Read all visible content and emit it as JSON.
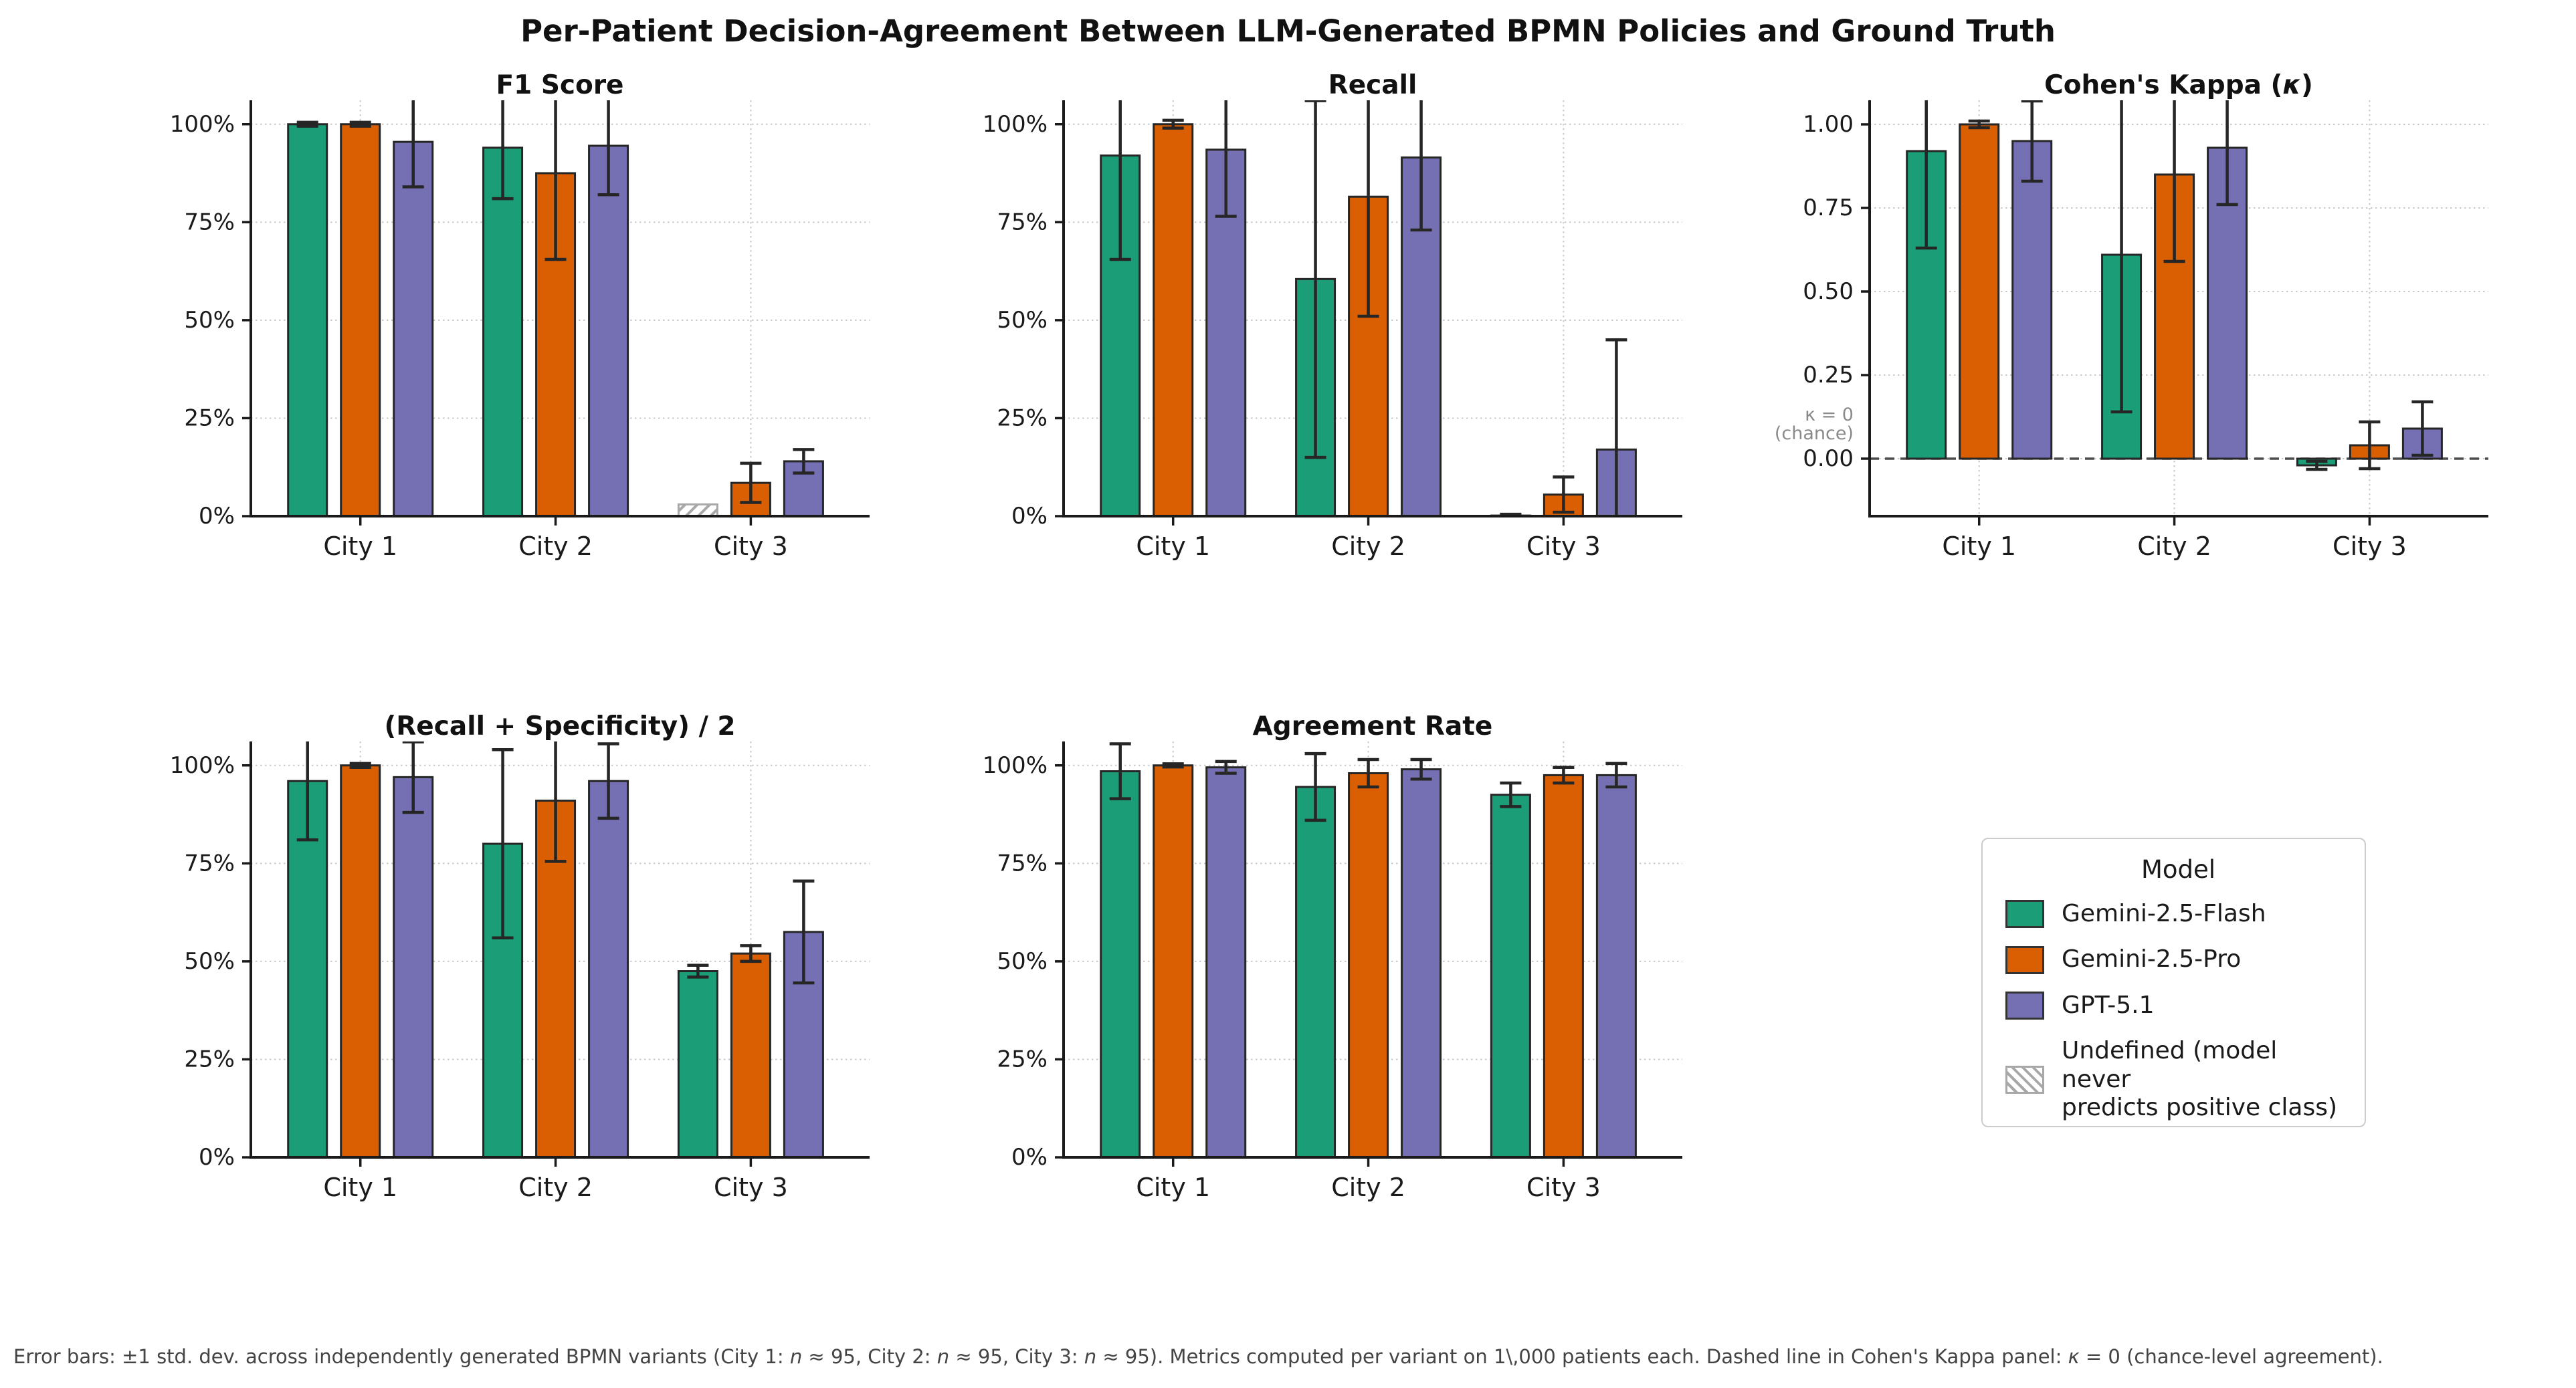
{
  "title": "Per-Patient Decision-Agreement Between LLM-Generated BPMN Policies and Ground Truth",
  "models": [
    {
      "name": "Gemini-2.5-Flash",
      "color": "#1b9e77"
    },
    {
      "name": "Gemini-2.5-Pro",
      "color": "#d95f02"
    },
    {
      "name": "GPT-5.1",
      "color": "#7570b3"
    }
  ],
  "legend": {
    "title": "Model",
    "undefined_lines": [
      "Undefined (model never",
      "predicts positive class)"
    ]
  },
  "style_colors": {
    "bar_edge": "#262626",
    "error_bar": "#262626",
    "grid": "#c9c9c9",
    "spine": "#1a1a1a",
    "zero_dash": "#4d4d4d",
    "hatch": "#a8a8a8",
    "annotation": "#8a8a8a"
  },
  "footnote": {
    "segments": [
      {
        "text": "Error bars: ±1 std. dev. across independently generated BPMN variants (City 1: ",
        "italic": false
      },
      {
        "text": "n",
        "italic": true
      },
      {
        "text": " ≈ 95, City 2: ",
        "italic": false
      },
      {
        "text": "n",
        "italic": true
      },
      {
        "text": " ≈ 95, City 3: ",
        "italic": false
      },
      {
        "text": "n",
        "italic": true
      },
      {
        "text": " ≈ 95). Metrics computed per variant on 1\\,000 patients each. Dashed line in Cohen's Kappa panel: ",
        "italic": false
      },
      {
        "text": "κ",
        "italic": true
      },
      {
        "text": " = 0 (chance-level agreement).",
        "italic": false
      }
    ]
  },
  "chart_data": {
    "type": "bar",
    "categories": [
      "City 1",
      "City 2",
      "City 3"
    ],
    "legend_position": "lower-right cell of 2x3 grid",
    "grid": "dotted horizontal at y-ticks and vertical at city centers",
    "panels": [
      {
        "id": "f1",
        "title_segments": [
          {
            "text": "F1 Score",
            "italic": false
          }
        ],
        "unit": "percent",
        "ylim": [
          0,
          106.1
        ],
        "ytick_values": [
          0,
          25,
          50,
          75,
          100
        ],
        "ytick_labels": [
          "0%",
          "25%",
          "50%",
          "75%",
          "100%"
        ],
        "series": [
          {
            "name": "Gemini-2.5-Flash",
            "values": [
              100,
              94,
              null
            ],
            "errors": [
              0.5,
              13,
              null
            ]
          },
          {
            "name": "Gemini-2.5-Pro",
            "values": [
              100,
              87.5,
              8.5
            ],
            "errors": [
              0.5,
              22,
              5
            ]
          },
          {
            "name": "GPT-5.1",
            "values": [
              95.5,
              94.5,
              14
            ],
            "errors": [
              11.5,
              12.5,
              3
            ]
          }
        ],
        "undefined_marker": {
          "series": 0,
          "category": 2,
          "display_height": 3,
          "meaning": "Undefined (model never predicts positive class)"
        }
      },
      {
        "id": "recall",
        "title_segments": [
          {
            "text": "Recall",
            "italic": false
          }
        ],
        "unit": "percent",
        "ylim": [
          0,
          106.1
        ],
        "ytick_values": [
          0,
          25,
          50,
          75,
          100
        ],
        "ytick_labels": [
          "0%",
          "25%",
          "50%",
          "75%",
          "100%"
        ],
        "series": [
          {
            "name": "Gemini-2.5-Flash",
            "values": [
              92,
              60.5,
              0.15
            ],
            "errors": [
              26.5,
              45.5,
              0.35
            ]
          },
          {
            "name": "Gemini-2.5-Pro",
            "values": [
              100,
              81.5,
              5.5
            ],
            "errors": [
              1,
              30.5,
              4.5
            ]
          },
          {
            "name": "GPT-5.1",
            "values": [
              93.5,
              91.5,
              17
            ],
            "errors": [
              17,
              18.5,
              28
            ]
          }
        ]
      },
      {
        "id": "kappa",
        "title_segments": [
          {
            "text": "Cohen's Kappa (",
            "italic": false
          },
          {
            "text": "κ",
            "italic": true
          },
          {
            "text": ")",
            "italic": false
          }
        ],
        "unit": "kappa",
        "ylim": [
          -0.172,
          1.072
        ],
        "ytick_values": [
          0,
          0.25,
          0.5,
          0.75,
          1.0
        ],
        "ytick_labels": [
          "0.00",
          "0.25",
          "0.50",
          "0.75",
          "1.00"
        ],
        "zero_line": true,
        "annotation": {
          "lines": [
            "κ = 0",
            "(chance)"
          ]
        },
        "series": [
          {
            "name": "Gemini-2.5-Flash",
            "values": [
              0.92,
              0.61,
              -0.02
            ],
            "errors": [
              0.29,
              0.47,
              0.012
            ]
          },
          {
            "name": "Gemini-2.5-Pro",
            "values": [
              1.0,
              0.85,
              0.04
            ],
            "errors": [
              0.01,
              0.26,
              0.07
            ]
          },
          {
            "name": "GPT-5.1",
            "values": [
              0.95,
              0.93,
              0.09
            ],
            "errors": [
              0.12,
              0.17,
              0.08
            ]
          }
        ]
      },
      {
        "id": "recall-specificity",
        "title_segments": [
          {
            "text": "(Recall + Specificity) / 2",
            "italic": false
          }
        ],
        "unit": "percent",
        "ylim": [
          0,
          106.1
        ],
        "ytick_values": [
          0,
          25,
          50,
          75,
          100
        ],
        "ytick_labels": [
          "0%",
          "25%",
          "50%",
          "75%",
          "100%"
        ],
        "series": [
          {
            "name": "Gemini-2.5-Flash",
            "values": [
              96,
              80,
              47.5
            ],
            "errors": [
              15,
              24,
              1.5
            ]
          },
          {
            "name": "Gemini-2.5-Pro",
            "values": [
              100,
              91,
              52
            ],
            "errors": [
              0.5,
              15.5,
              2
            ]
          },
          {
            "name": "GPT-5.1",
            "values": [
              97,
              96,
              57.5
            ],
            "errors": [
              9,
              9.5,
              13
            ]
          }
        ]
      },
      {
        "id": "agreement",
        "title_segments": [
          {
            "text": "Agreement Rate",
            "italic": false
          }
        ],
        "unit": "percent",
        "ylim": [
          0,
          106.1
        ],
        "ytick_values": [
          0,
          25,
          50,
          75,
          100
        ],
        "ytick_labels": [
          "0%",
          "25%",
          "50%",
          "75%",
          "100%"
        ],
        "series": [
          {
            "name": "Gemini-2.5-Flash",
            "values": [
              98.5,
              94.5,
              92.5
            ],
            "errors": [
              7,
              8.5,
              3
            ]
          },
          {
            "name": "Gemini-2.5-Pro",
            "values": [
              100,
              98,
              97.5
            ],
            "errors": [
              0.4,
              3.5,
              2
            ]
          },
          {
            "name": "GPT-5.1",
            "values": [
              99.5,
              99,
              97.5
            ],
            "errors": [
              1.5,
              2.5,
              3
            ]
          }
        ]
      }
    ]
  }
}
